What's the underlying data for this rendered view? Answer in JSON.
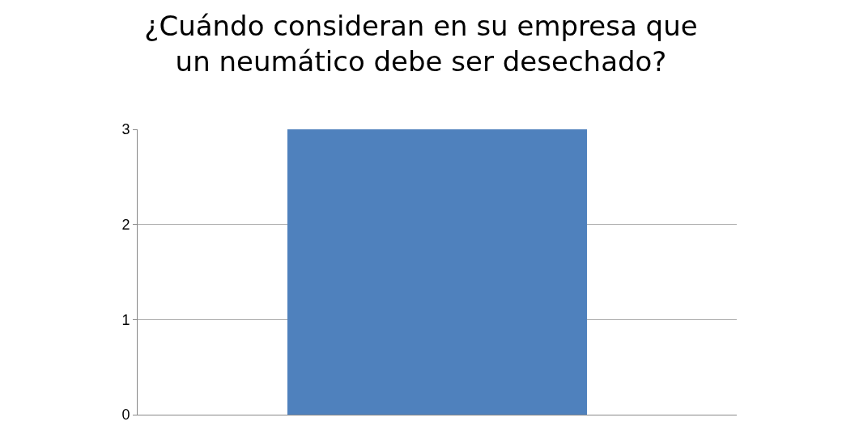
{
  "chart_data": {
    "type": "bar",
    "title": "¿Cuándo consideran en su empresa que\nun neumático debe ser desechado?",
    "categories": [
      null
    ],
    "values": [
      3
    ],
    "color": "#4f81bd",
    "ylim": [
      0,
      3
    ],
    "yticks": [
      0,
      1,
      2,
      3
    ],
    "grid": "y",
    "legend": false
  }
}
